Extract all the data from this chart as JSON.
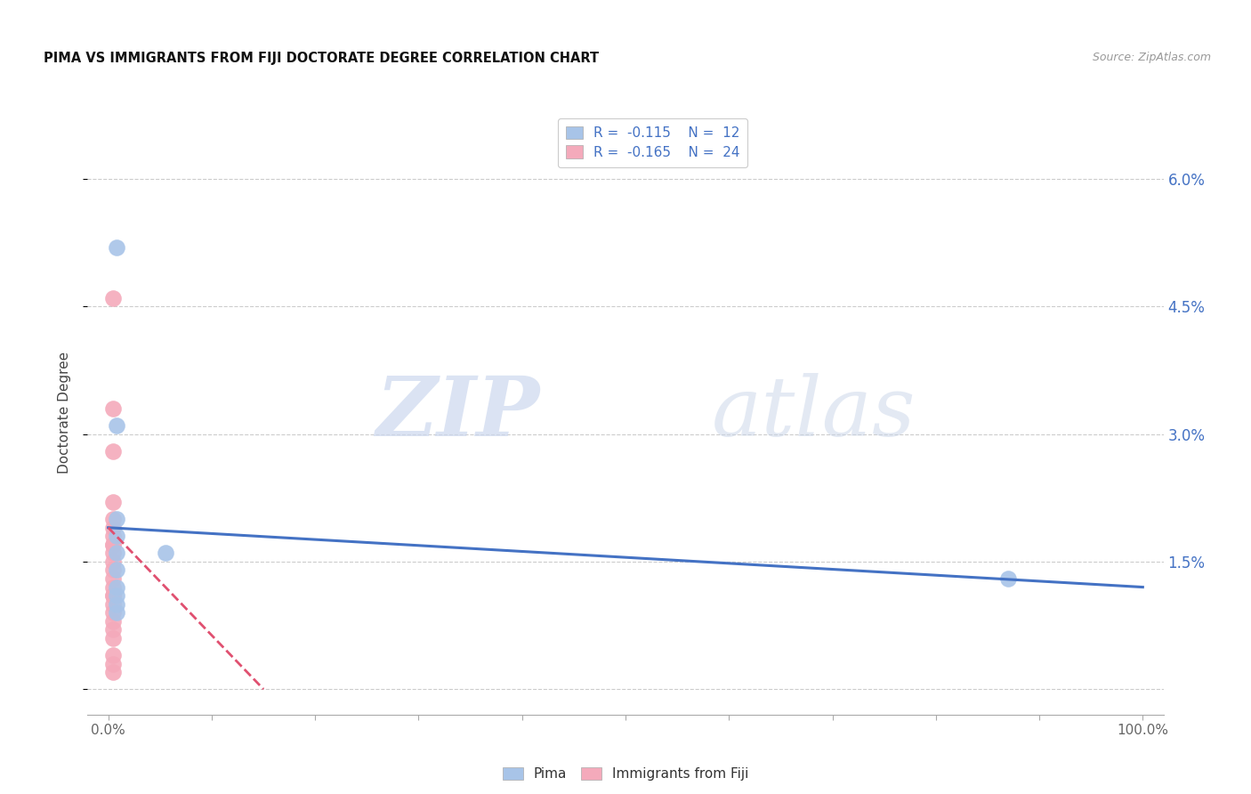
{
  "title": "PIMA VS IMMIGRANTS FROM FIJI DOCTORATE DEGREE CORRELATION CHART",
  "source": "Source: ZipAtlas.com",
  "ylabel": "Doctorate Degree",
  "xlim": [
    -0.02,
    1.02
  ],
  "ylim": [
    -0.003,
    0.068
  ],
  "x_ticks": [
    0.0,
    0.1,
    0.2,
    0.3,
    0.4,
    0.5,
    0.6,
    0.7,
    0.8,
    0.9,
    1.0
  ],
  "x_tick_labels": [
    "0.0%",
    "",
    "",
    "",
    "",
    "",
    "",
    "",
    "",
    "",
    "100.0%"
  ],
  "y_ticks": [
    0.0,
    0.015,
    0.03,
    0.045,
    0.06
  ],
  "y_tick_labels_right": [
    "",
    "1.5%",
    "3.0%",
    "4.5%",
    "6.0%"
  ],
  "legend_pima_R": "-0.115",
  "legend_pima_N": "12",
  "legend_fiji_R": "-0.165",
  "legend_fiji_N": "24",
  "pima_color": "#a8c4e8",
  "fiji_color": "#f4aabb",
  "trendline_pima_color": "#4472c4",
  "trendline_fiji_color": "#e05070",
  "right_axis_color": "#4472c4",
  "watermark_zip": "ZIP",
  "watermark_atlas": "atlas",
  "pima_points": [
    [
      0.008,
      0.052
    ],
    [
      0.008,
      0.031
    ],
    [
      0.008,
      0.02
    ],
    [
      0.008,
      0.018
    ],
    [
      0.008,
      0.016
    ],
    [
      0.008,
      0.014
    ],
    [
      0.008,
      0.012
    ],
    [
      0.008,
      0.011
    ],
    [
      0.008,
      0.01
    ],
    [
      0.008,
      0.009
    ],
    [
      0.055,
      0.016
    ],
    [
      0.87,
      0.013
    ]
  ],
  "fiji_points": [
    [
      0.005,
      0.046
    ],
    [
      0.005,
      0.033
    ],
    [
      0.005,
      0.028
    ],
    [
      0.005,
      0.022
    ],
    [
      0.005,
      0.02
    ],
    [
      0.005,
      0.019
    ],
    [
      0.005,
      0.018
    ],
    [
      0.005,
      0.017
    ],
    [
      0.005,
      0.017
    ],
    [
      0.005,
      0.016
    ],
    [
      0.005,
      0.015
    ],
    [
      0.005,
      0.014
    ],
    [
      0.005,
      0.013
    ],
    [
      0.005,
      0.012
    ],
    [
      0.005,
      0.011
    ],
    [
      0.005,
      0.011
    ],
    [
      0.005,
      0.01
    ],
    [
      0.005,
      0.009
    ],
    [
      0.005,
      0.008
    ],
    [
      0.005,
      0.007
    ],
    [
      0.005,
      0.006
    ],
    [
      0.005,
      0.004
    ],
    [
      0.005,
      0.003
    ],
    [
      0.005,
      0.002
    ]
  ],
  "pima_trend_x": [
    0.0,
    1.0
  ],
  "pima_trend_y": [
    0.019,
    0.012
  ],
  "fiji_trend_x": [
    0.0,
    0.15
  ],
  "fiji_trend_y": [
    0.019,
    0.0
  ],
  "marker_size": 180
}
